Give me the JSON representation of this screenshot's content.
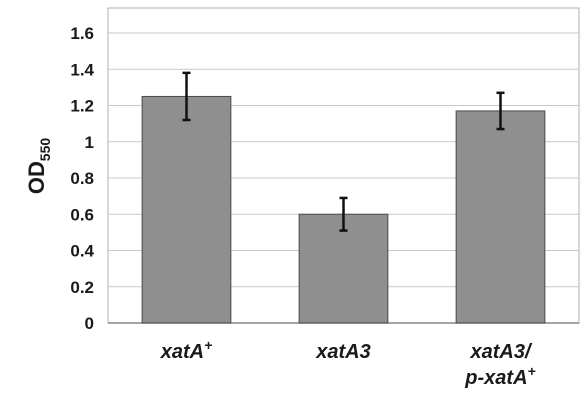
{
  "chart_data": {
    "type": "bar",
    "categories": [
      {
        "lines": [
          {
            "main": "xatA",
            "sup": "+"
          }
        ]
      },
      {
        "lines": [
          {
            "main": "xatA3",
            "sup": ""
          }
        ]
      },
      {
        "lines": [
          {
            "main": "xatA3/",
            "sup": ""
          },
          {
            "main": "p-xatA",
            "sup": "+"
          }
        ]
      }
    ],
    "category_names": [
      "xatA+",
      "xatA3",
      "xatA3/p-xatA+"
    ],
    "values": [
      1.25,
      0.6,
      1.17
    ],
    "error": [
      0.13,
      0.09,
      0.1
    ],
    "ylim": [
      0,
      1.6
    ],
    "yticks": [
      "0",
      "0.2",
      "0.4",
      "0.6",
      "0.8",
      "1",
      "1.2",
      "1.4",
      "1.6"
    ],
    "ylabel": {
      "main": "OD",
      "sub": "550"
    },
    "grid": true,
    "colors": {
      "bar": "#8f8f8f",
      "bar_stroke": "#4a4a4a",
      "grid": "#c8c8c8",
      "axis": "#888888",
      "error": "#111111"
    }
  }
}
